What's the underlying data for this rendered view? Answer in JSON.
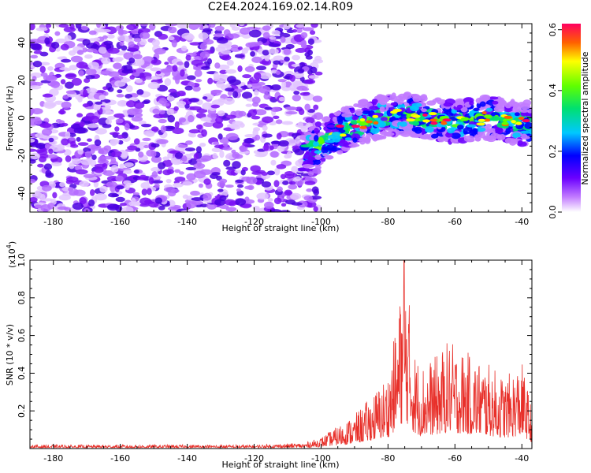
{
  "title": "C2E4.2024.169.02.14.R09",
  "chart_data": [
    {
      "type": "heatmap",
      "xlabel": "Height of straight line (km)",
      "ylabel": "Frequency (Hz)",
      "xlim": [
        -187,
        -37
      ],
      "ylim": [
        -50,
        50
      ],
      "xticks": [
        "-180",
        "-160",
        "-140",
        "-120",
        "-100",
        "-80",
        "-60",
        "-40"
      ],
      "yticks": [
        "-40",
        "-20",
        "0",
        "20",
        "40"
      ],
      "colorbar": {
        "label": "Normalized spectral amplitude",
        "range": [
          0.0,
          0.62
        ],
        "ticks": [
          "0.0",
          "0.2",
          "0.4",
          "0.6"
        ]
      },
      "description_values": {
        "noise_region_x": [
          -187,
          -103
        ],
        "signal_band_x": [
          -103,
          -37
        ],
        "signal_band_center_freq": [
          -13,
          -5,
          0,
          2,
          0,
          -2,
          0,
          -3
        ],
        "signal_band_center_x": [
          -100,
          -92,
          -84,
          -76,
          -68,
          -60,
          -50,
          -40
        ],
        "peak_amplitude": 0.62
      }
    },
    {
      "type": "line",
      "xlabel": "Height of straight line (km)",
      "ylabel": "SNR (10 * v/v)",
      "ymultiplier": "(x10",
      "ymultiplier_exp": "4",
      "ymultiplier_close": ")",
      "xlim": [
        -187,
        -37
      ],
      "ylim": [
        0,
        1.0
      ],
      "xticks": [
        "-180",
        "-160",
        "-140",
        "-120",
        "-100",
        "-80",
        "-60",
        "-40"
      ],
      "yticks": [
        "0.2",
        "0.4",
        "0.6",
        "0.8",
        "1.0"
      ],
      "series": [
        {
          "color": "#e8302a",
          "envelope_x": [
            -187,
            -120,
            -105,
            -100,
            -95,
            -90,
            -85,
            -80,
            -77,
            -75,
            -72,
            -70,
            -65,
            -62,
            -60,
            -55,
            -50,
            -45,
            -40,
            -37
          ],
          "envelope_max": [
            0.02,
            0.02,
            0.03,
            0.06,
            0.12,
            0.18,
            0.28,
            0.4,
            0.72,
            1.0,
            0.52,
            0.45,
            0.5,
            0.58,
            0.55,
            0.5,
            0.45,
            0.38,
            0.46,
            0.22
          ]
        }
      ]
    }
  ]
}
